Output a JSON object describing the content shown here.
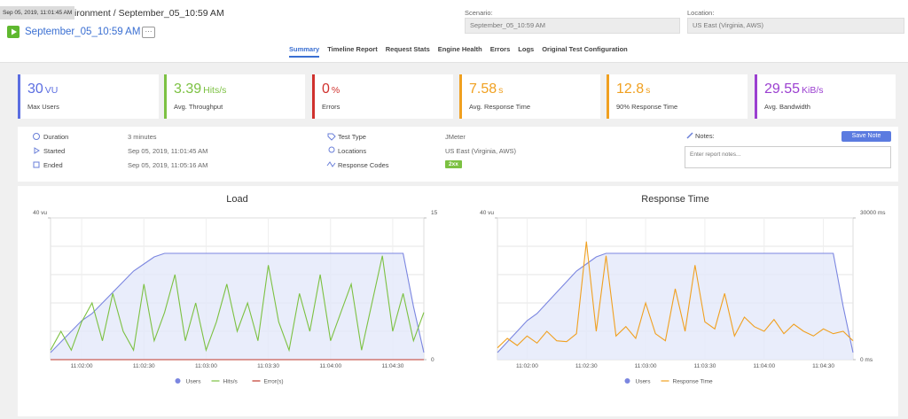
{
  "header": {
    "tooltip": "Sep 05, 2019, 11:01:45 AM",
    "breadcrumb": "ironment / September_05_10:59 AM",
    "report_name": "September_05_10:59 AM",
    "more": "···",
    "scenario_label": "Scenario:",
    "scenario_value": "September_05_10:59 AM",
    "location_label": "Location:",
    "location_value": "US East (Virginia, AWS)"
  },
  "tabs": [
    "Summary",
    "Timeline Report",
    "Request Stats",
    "Engine Health",
    "Errors",
    "Logs",
    "Original Test Configuration"
  ],
  "active_tab": "Summary",
  "kpis": [
    {
      "value": 30,
      "unit": "VU",
      "label": "Max Users",
      "color": "#5b6ee1"
    },
    {
      "value": 3.39,
      "unit": "Hits/s",
      "label": "Avg. Throughput",
      "color": "#7cc142"
    },
    {
      "value": 0,
      "unit": "%",
      "label": "Errors",
      "color": "#d0312d"
    },
    {
      "value": 7.58,
      "unit": "s",
      "label": "Avg. Response Time",
      "color": "#f0a020"
    },
    {
      "value": 12.8,
      "unit": "s",
      "label": "90% Response Time",
      "color": "#f0a020"
    },
    {
      "value": 29.55,
      "unit": "KiB/s",
      "label": "Avg. Bandwidth",
      "color": "#9b3fd0"
    }
  ],
  "details": {
    "left": [
      {
        "label": "Duration",
        "value": "3 minutes"
      },
      {
        "label": "Started",
        "value": "Sep 05, 2019, 11:01:45 AM"
      },
      {
        "label": "Ended",
        "value": "Sep 05, 2019, 11:05:16 AM"
      }
    ],
    "middle": [
      {
        "label": "Test Type",
        "value": "JMeter"
      },
      {
        "label": "Locations",
        "value": "US East (Virginia, AWS)"
      },
      {
        "label": "Response Codes",
        "value": "2xx"
      }
    ],
    "notes_label": "Notes:",
    "save_button": "Save Note",
    "notes_placeholder": "Enter report notes..."
  },
  "chart_data": [
    {
      "type": "line",
      "title": "Load",
      "x": [
        "11:01:45",
        "11:01:50",
        "11:01:55",
        "11:02:00",
        "11:02:05",
        "11:02:10",
        "11:02:15",
        "11:02:20",
        "11:02:25",
        "11:02:30",
        "11:02:35",
        "11:02:40",
        "11:02:45",
        "11:02:50",
        "11:02:55",
        "11:03:00",
        "11:03:05",
        "11:03:10",
        "11:03:15",
        "11:03:20",
        "11:03:25",
        "11:03:30",
        "11:03:35",
        "11:03:40",
        "11:03:45",
        "11:03:50",
        "11:03:55",
        "11:04:00",
        "11:04:05",
        "11:04:10",
        "11:04:15",
        "11:04:20",
        "11:04:25",
        "11:04:30",
        "11:04:35",
        "11:04:40",
        "11:04:45"
      ],
      "xlim": [
        "11:01:45",
        "11:04:45"
      ],
      "xticks": [
        "11:02:00",
        "11:02:30",
        "11:03:00",
        "11:03:30",
        "11:04:00",
        "11:04:30"
      ],
      "ylim": [
        0,
        40
      ],
      "yticks": [
        {
          "value": 40,
          "label": "40 vu"
        }
      ],
      "y2lim": [
        0,
        15
      ],
      "y2ticks": [
        0,
        15
      ],
      "legend": "bottom",
      "series": [
        {
          "name": "Users",
          "color": "#7b86e0",
          "fill": "#e3e8fa",
          "values": [
            2,
            5,
            8,
            11,
            13,
            16,
            19,
            22,
            25,
            27,
            29,
            30,
            30,
            30,
            30,
            30,
            30,
            30,
            30,
            30,
            30,
            30,
            30,
            30,
            30,
            30,
            30,
            30,
            30,
            30,
            30,
            30,
            30,
            30,
            30,
            15,
            2
          ]
        },
        {
          "name": "Hits/s",
          "color": "#7cc142",
          "axis": "y2",
          "values": [
            1,
            3,
            1,
            4,
            6,
            2,
            7,
            3,
            1,
            8,
            2,
            5,
            9,
            2,
            6,
            1,
            4,
            8,
            3,
            6,
            2,
            10,
            4,
            1,
            7,
            3,
            9,
            2,
            5,
            8,
            1,
            6,
            11,
            3,
            7,
            2,
            5
          ]
        },
        {
          "name": "Error(s)",
          "color": "#c0392b",
          "axis": "y2",
          "values": [
            0,
            0,
            0,
            0,
            0,
            0,
            0,
            0,
            0,
            0,
            0,
            0,
            0,
            0,
            0,
            0,
            0,
            0,
            0,
            0,
            0,
            0,
            0,
            0,
            0,
            0,
            0,
            0,
            0,
            0,
            0,
            0,
            0,
            0,
            0,
            0,
            0
          ]
        }
      ]
    },
    {
      "type": "line",
      "title": "Response Time",
      "x": [
        "11:01:45",
        "11:01:50",
        "11:01:55",
        "11:02:00",
        "11:02:05",
        "11:02:10",
        "11:02:15",
        "11:02:20",
        "11:02:25",
        "11:02:30",
        "11:02:35",
        "11:02:40",
        "11:02:45",
        "11:02:50",
        "11:02:55",
        "11:03:00",
        "11:03:05",
        "11:03:10",
        "11:03:15",
        "11:03:20",
        "11:03:25",
        "11:03:30",
        "11:03:35",
        "11:03:40",
        "11:03:45",
        "11:03:50",
        "11:03:55",
        "11:04:00",
        "11:04:05",
        "11:04:10",
        "11:04:15",
        "11:04:20",
        "11:04:25",
        "11:04:30",
        "11:04:35",
        "11:04:40",
        "11:04:45"
      ],
      "xlim": [
        "11:01:45",
        "11:04:45"
      ],
      "xticks": [
        "11:02:00",
        "11:02:30",
        "11:03:00",
        "11:03:30",
        "11:04:00",
        "11:04:30"
      ],
      "ylim": [
        0,
        40
      ],
      "yticks": [
        {
          "value": 40,
          "label": "40 vu"
        }
      ],
      "y2lim": [
        0,
        30000
      ],
      "y2ticks": [
        {
          "value": 0,
          "label": "0 ms"
        },
        {
          "value": 30000,
          "label": "30000 ms"
        }
      ],
      "legend": "bottom",
      "series": [
        {
          "name": "Users",
          "color": "#7b86e0",
          "fill": "#e3e8fa",
          "values": [
            2,
            5,
            8,
            11,
            13,
            16,
            19,
            22,
            25,
            27,
            29,
            30,
            30,
            30,
            30,
            30,
            30,
            30,
            30,
            30,
            30,
            30,
            30,
            30,
            30,
            30,
            30,
            30,
            30,
            30,
            30,
            30,
            30,
            30,
            30,
            15,
            2
          ]
        },
        {
          "name": "Response Time",
          "color": "#f0a020",
          "axis": "y2",
          "values": [
            2500,
            4500,
            3000,
            5000,
            3500,
            6000,
            4000,
            3800,
            5500,
            25000,
            6000,
            22000,
            5000,
            7000,
            4500,
            12000,
            5500,
            4000,
            15000,
            6000,
            20000,
            8000,
            6500,
            14000,
            5000,
            9000,
            7000,
            6000,
            8500,
            5500,
            7500,
            6000,
            5000,
            6500,
            5500,
            6000,
            4000
          ]
        }
      ]
    }
  ]
}
